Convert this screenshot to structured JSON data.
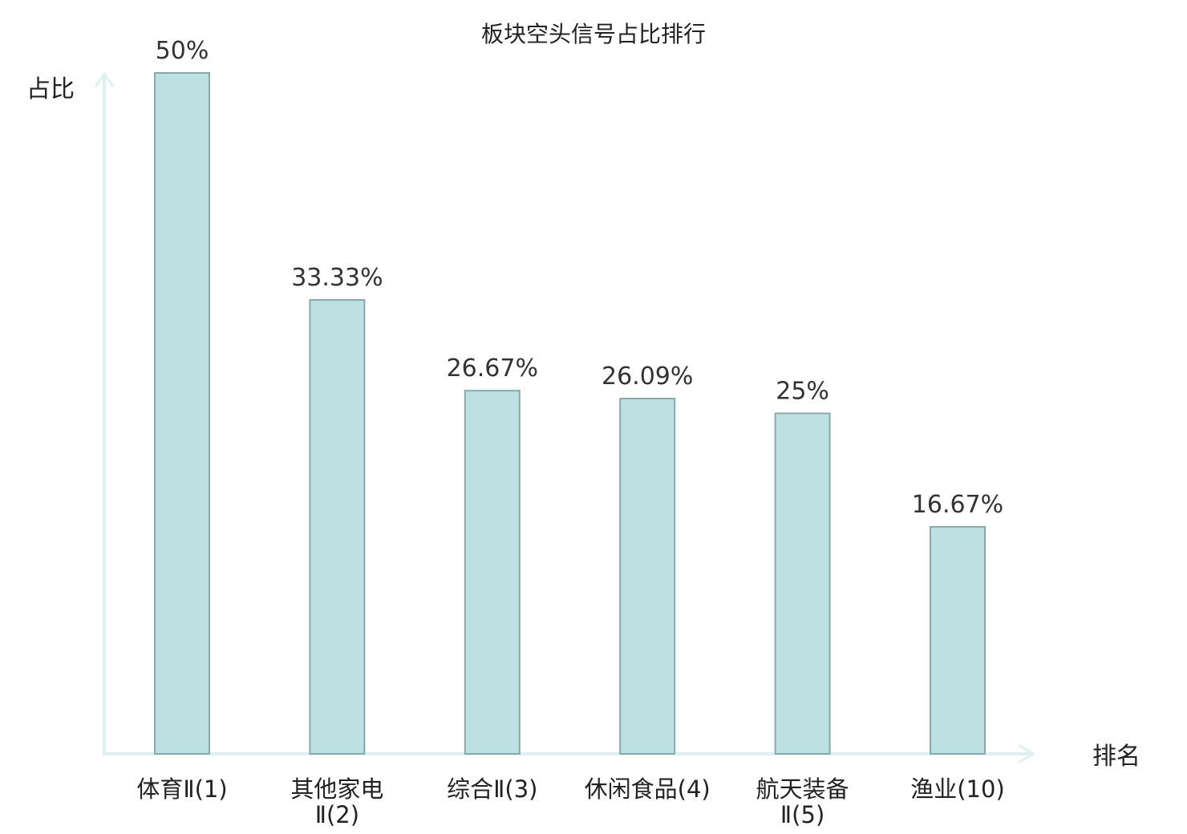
{
  "chart_data": {
    "type": "bar",
    "title": "板块空头信号占比排行",
    "ylabel": "占比",
    "xlabel": "排名",
    "categories": [
      {
        "lines": [
          "体育Ⅱ(1)"
        ],
        "highlight": false
      },
      {
        "lines": [
          "其他家电",
          "Ⅱ(2)"
        ],
        "highlight": false
      },
      {
        "lines": [
          "综合Ⅱ(3)"
        ],
        "highlight": false
      },
      {
        "lines": [
          "休闲食品(4)"
        ],
        "highlight": false
      },
      {
        "lines": [
          "航天装备",
          "Ⅱ(5)"
        ],
        "highlight": false
      },
      {
        "lines": [
          "渔业(10)"
        ],
        "highlight": true
      }
    ],
    "values": [
      50,
      33.33,
      26.67,
      26.09,
      25,
      16.67
    ],
    "value_labels": [
      "50%",
      "33.33%",
      "26.67%",
      "26.09%",
      "25%",
      "16.67%"
    ],
    "ylim": [
      0,
      50
    ],
    "grid": false,
    "colors": {
      "bar_fill": "#bde0e3",
      "bar_stroke": "#8aa8ab",
      "axis": "#dff1ee",
      "highlight_text": "#e0191c",
      "text": "#222222"
    }
  }
}
